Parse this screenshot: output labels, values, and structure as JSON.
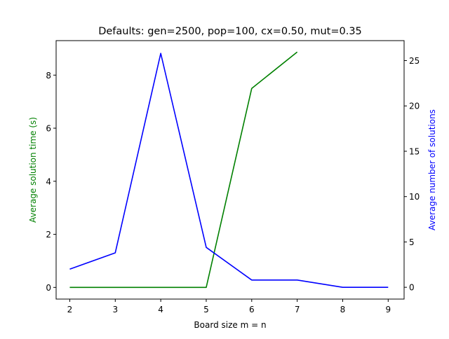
{
  "chart_data": {
    "type": "line",
    "title": "Defaults: gen=2500, pop=100, cx=0.50, mut=0.35",
    "xlabel": "Board size m = n",
    "ylabel_left": "Average solution time (s)",
    "ylabel_right": "Average number of solutions",
    "xlim": [
      1.7,
      9.35
    ],
    "ylim_left": [
      -0.44,
      9.3
    ],
    "ylim_right": [
      -1.3,
      27.2
    ],
    "x_ticks": [
      2,
      3,
      4,
      5,
      6,
      7,
      8,
      9
    ],
    "y_ticks_left": [
      0,
      2,
      4,
      6,
      8
    ],
    "y_ticks_right": [
      0,
      5,
      10,
      15,
      20,
      25
    ],
    "grid": false,
    "legend": "none",
    "colors": {
      "left": "#008000",
      "right": "#0000ff"
    },
    "series": [
      {
        "axis": "left",
        "color": "#008000",
        "x": [
          2,
          3,
          4,
          5,
          6,
          7
        ],
        "values": [
          0,
          0,
          0,
          0,
          7.5,
          8.87
        ]
      },
      {
        "axis": "right",
        "color": "#0000ff",
        "x": [
          2,
          3,
          4,
          5,
          6,
          7,
          8,
          9
        ],
        "values": [
          2.0,
          3.8,
          25.8,
          4.4,
          0.8,
          0.8,
          0.0,
          0.0
        ]
      }
    ]
  }
}
